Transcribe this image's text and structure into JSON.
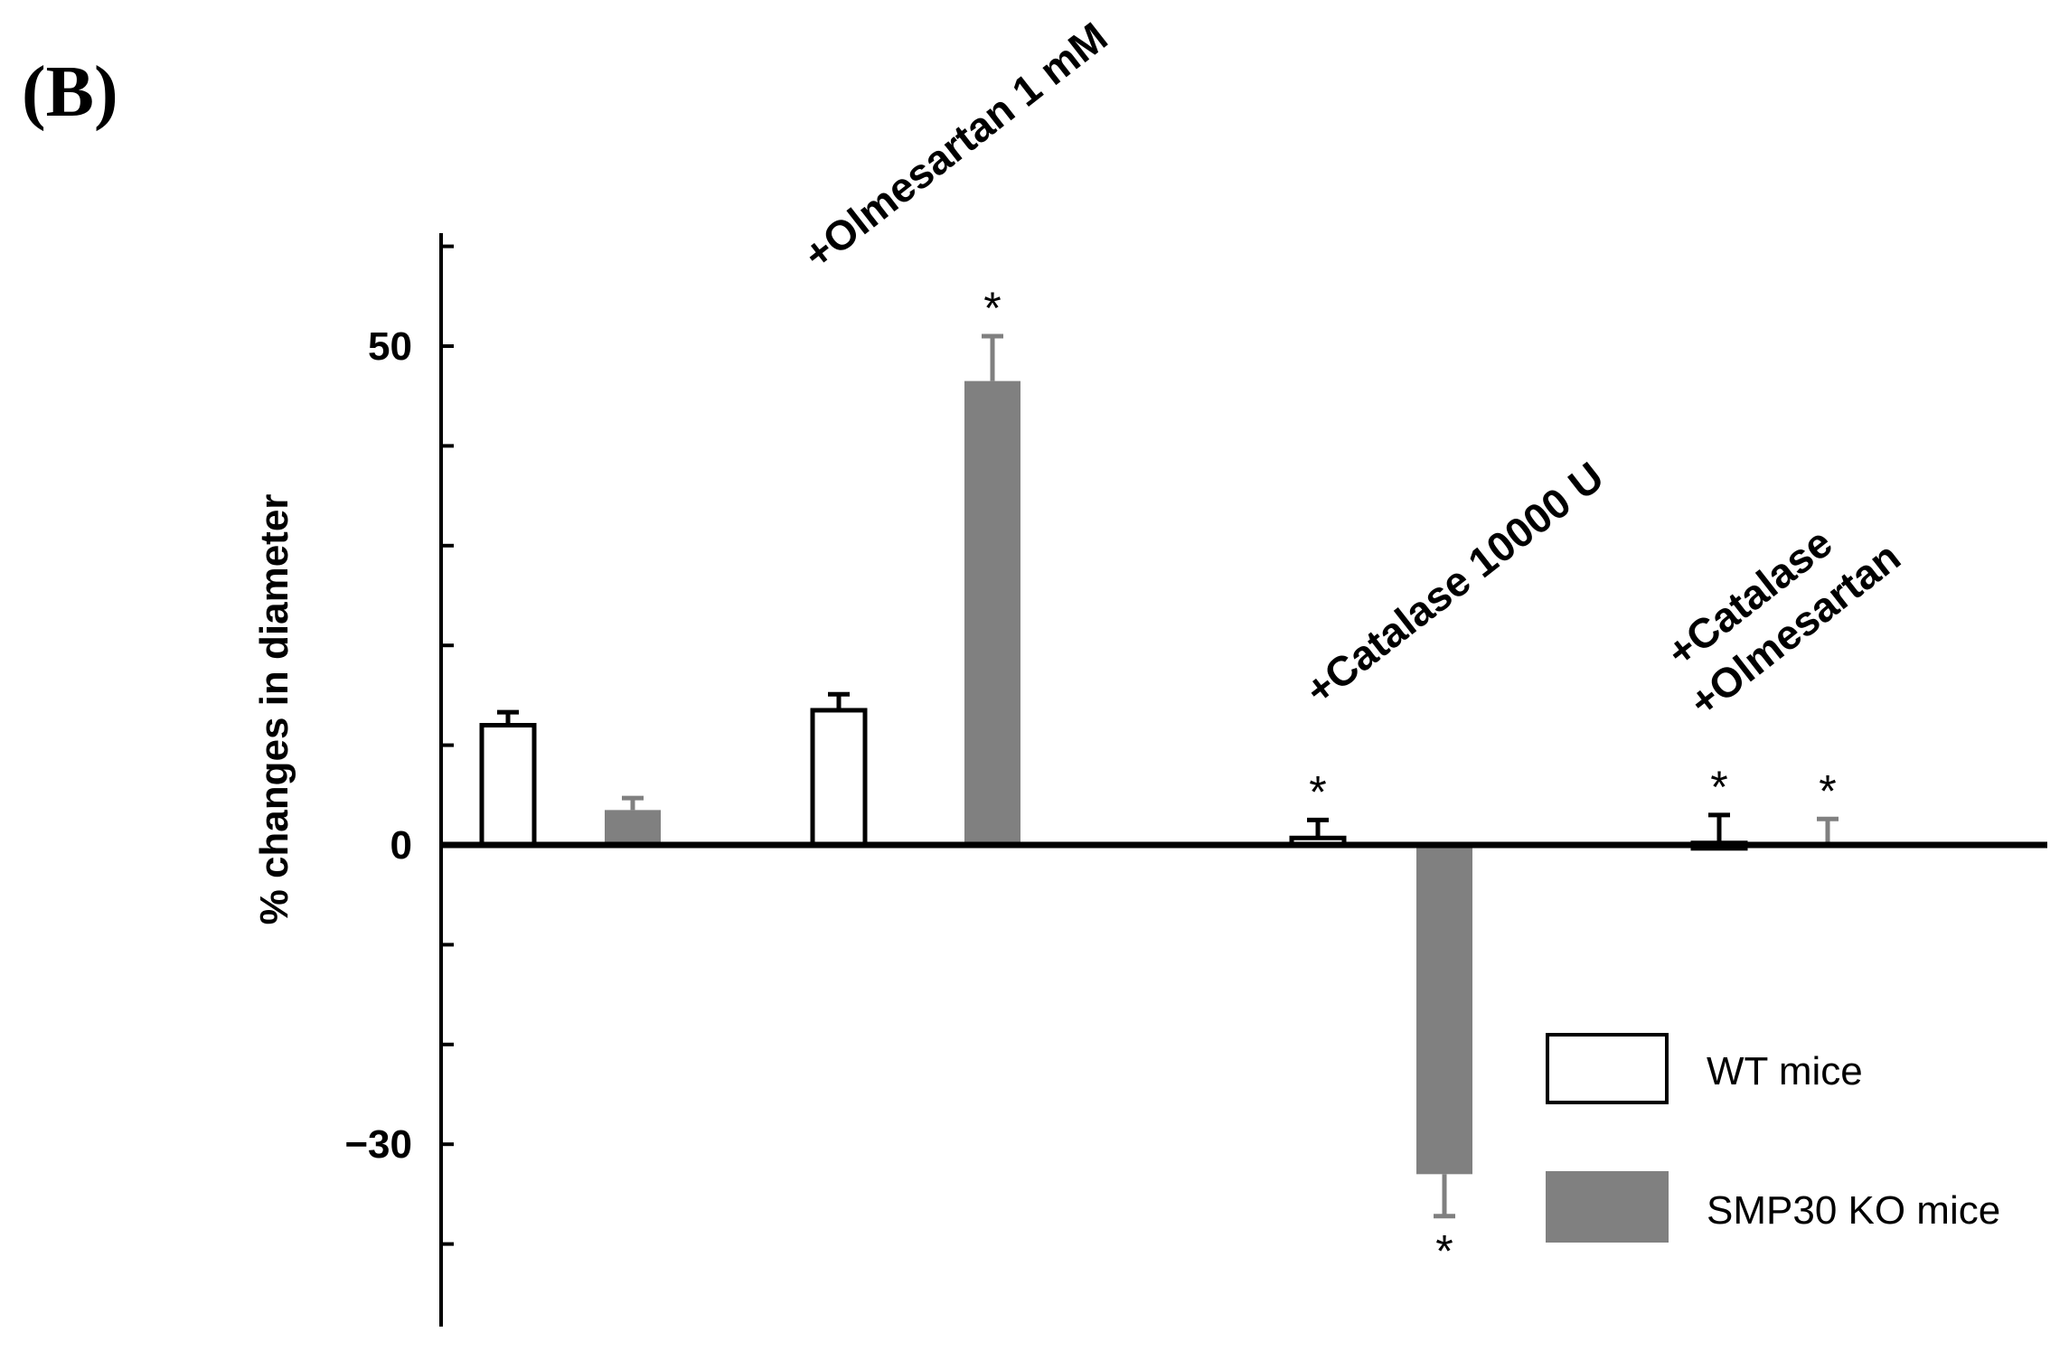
{
  "panel_label": "(B)",
  "chart_data": {
    "type": "bar",
    "ylabel": "% changes in diameter",
    "ylim": [
      -42,
      60
    ],
    "yticks": [
      -40,
      -30,
      -20,
      -10,
      0,
      10,
      20,
      30,
      40,
      50,
      60
    ],
    "ytick_labels": [
      {
        "value": 50,
        "label": "50"
      },
      {
        "value": 0,
        "label": "0"
      },
      {
        "value": -30,
        "label": "−30"
      }
    ],
    "groups": [
      {
        "label_lines": [],
        "WT mice": 12,
        "WT_err": 1.3,
        "WT_sig": "",
        "SMP30 KO mice": 3.5,
        "KO_err": 1.2,
        "KO_sig": ""
      },
      {
        "label_lines": [
          "+Olmesartan 1 mM"
        ],
        "WT mice": 13.5,
        "WT_err": 1.6,
        "WT_sig": "",
        "SMP30 KO mice": 46.5,
        "KO_err": 4.5,
        "KO_sig": "*"
      },
      {
        "label_lines": [
          "+Catalase 10000 U"
        ],
        "WT mice": 0.7,
        "WT_err": 1.8,
        "WT_sig": "*",
        "SMP30 KO mice": -33,
        "KO_err": 4.2,
        "KO_sig": "*"
      },
      {
        "label_lines": [
          "+Catalase",
          "+Olmesartan"
        ],
        "WT mice": 0.2,
        "WT_err": 2.8,
        "WT_sig": "*",
        "SMP30 KO mice": 0,
        "KO_err": 2.6,
        "KO_sig": "*"
      }
    ],
    "series": [
      {
        "name": "WT mice",
        "color": "#ffffff",
        "stroke": "#000000"
      },
      {
        "name": "SMP30 KO mice",
        "color": "#808080",
        "stroke": "#808080"
      }
    ],
    "legend_position": "bottom-right"
  }
}
